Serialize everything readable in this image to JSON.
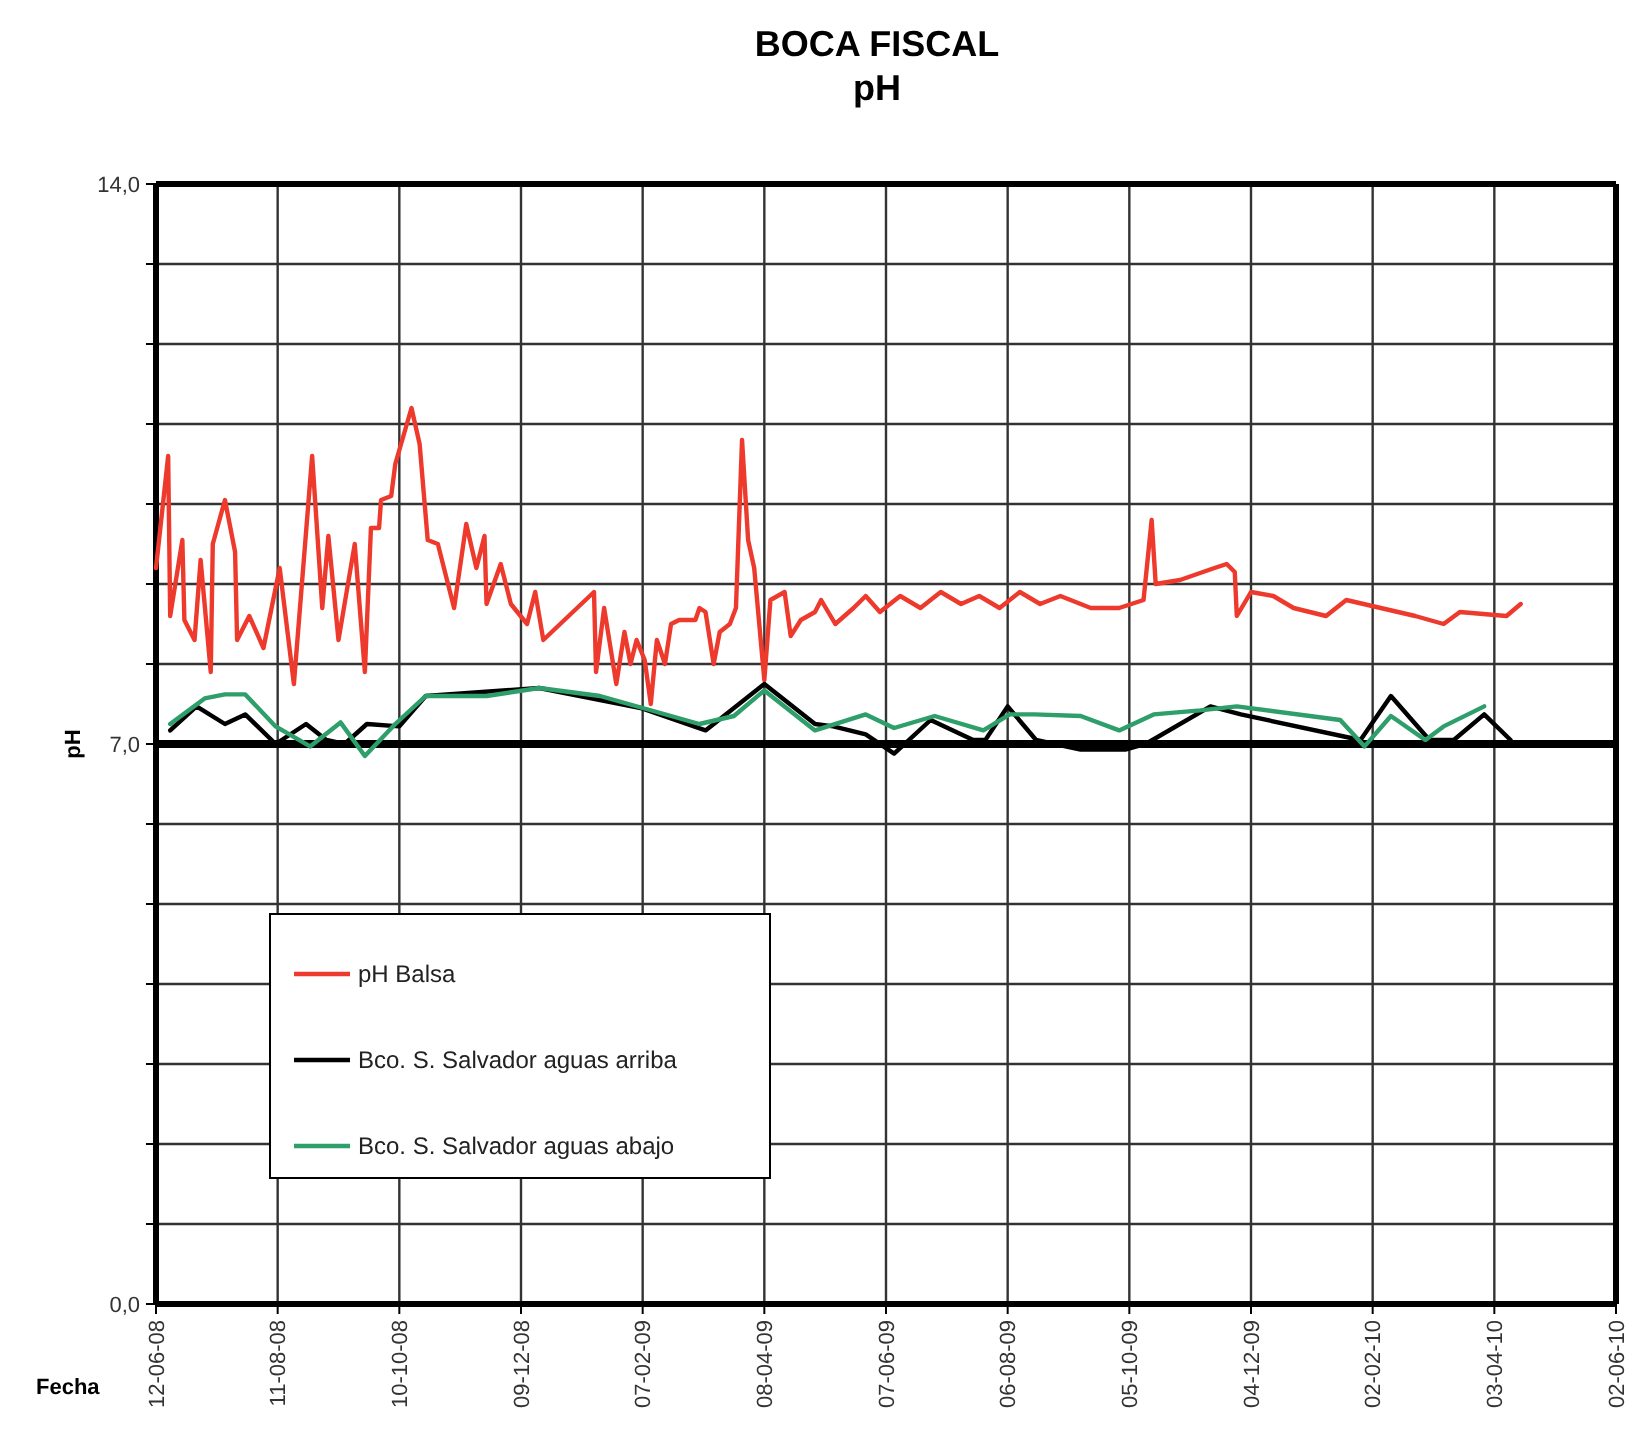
{
  "chart_data": {
    "type": "line",
    "title": "BOCA FISCAL",
    "subtitle": "pH",
    "xlabel": "Fecha",
    "ylabel": "pH",
    "xlim": [
      "2008-06-12",
      "2010-06-02"
    ],
    "xticks": [
      {
        "value": "2008-06-12",
        "label": "12-06-08"
      },
      {
        "value": "2008-08-11",
        "label": "11-08-08"
      },
      {
        "value": "2008-10-10",
        "label": "10-10-08"
      },
      {
        "value": "2008-12-09",
        "label": "09-12-08"
      },
      {
        "value": "2009-02-07",
        "label": "07-02-09"
      },
      {
        "value": "2009-04-08",
        "label": "08-04-09"
      },
      {
        "value": "2009-06-07",
        "label": "07-06-09"
      },
      {
        "value": "2009-08-06",
        "label": "06-08-09"
      },
      {
        "value": "2009-10-05",
        "label": "05-10-09"
      },
      {
        "value": "2009-12-04",
        "label": "04-12-09"
      },
      {
        "value": "2010-02-02",
        "label": "02-02-10"
      },
      {
        "value": "2010-04-03",
        "label": "03-04-10"
      },
      {
        "value": "2010-06-02",
        "label": "02-06-10"
      }
    ],
    "ylim": [
      0,
      14
    ],
    "yticks": [
      {
        "value": 0,
        "label": "0,0"
      },
      {
        "value": 1,
        "label": null
      },
      {
        "value": 2,
        "label": null
      },
      {
        "value": 3,
        "label": null
      },
      {
        "value": 4,
        "label": null
      },
      {
        "value": 5,
        "label": null
      },
      {
        "value": 6,
        "label": null
      },
      {
        "value": 7,
        "label": "7,0"
      },
      {
        "value": 8,
        "label": null
      },
      {
        "value": 9,
        "label": null
      },
      {
        "value": 10,
        "label": null
      },
      {
        "value": 11,
        "label": null
      },
      {
        "value": 12,
        "label": null
      },
      {
        "value": 13,
        "label": null
      },
      {
        "value": 14,
        "label": "14,0"
      }
    ],
    "grid": true,
    "legend": "bottom left",
    "marker": "none",
    "line_style": "solid",
    "ref_lines": [
      {
        "axis": "y",
        "value": 7,
        "color": "#000000"
      }
    ],
    "series": [
      {
        "name": "pH Balsa",
        "color": "#ee3a2c",
        "x": [
          "2008-06-12",
          "2008-06-18",
          "2008-06-19",
          "2008-06-25",
          "2008-06-26",
          "2008-07-01",
          "2008-07-04",
          "2008-07-09",
          "2008-07-10",
          "2008-07-16",
          "2008-07-21",
          "2008-07-22",
          "2008-07-28",
          "2008-08-04",
          "2008-08-12",
          "2008-08-19",
          "2008-08-28",
          "2008-09-02",
          "2008-09-05",
          "2008-09-10",
          "2008-09-18",
          "2008-09-23",
          "2008-09-26",
          "2008-09-30",
          "2008-10-01",
          "2008-10-06",
          "2008-10-08",
          "2008-10-16",
          "2008-10-20",
          "2008-10-24",
          "2008-10-29",
          "2008-11-06",
          "2008-11-12",
          "2008-11-17",
          "2008-11-21",
          "2008-11-22",
          "2008-11-29",
          "2008-12-04",
          "2008-12-12",
          "2008-12-16",
          "2008-12-20",
          "2009-01-14",
          "2009-01-15",
          "2009-01-19",
          "2009-01-25",
          "2009-01-29",
          "2009-02-01",
          "2009-02-04",
          "2009-02-08",
          "2009-02-11",
          "2009-02-14",
          "2009-02-18",
          "2009-02-21",
          "2009-02-25",
          "2009-03-05",
          "2009-03-07",
          "2009-03-10",
          "2009-03-14",
          "2009-03-17",
          "2009-03-22",
          "2009-03-25",
          "2009-03-28",
          "2009-03-31",
          "2009-04-03",
          "2009-04-08",
          "2009-04-11",
          "2009-04-18",
          "2009-04-21",
          "2009-04-26",
          "2009-05-03",
          "2009-05-06",
          "2009-05-13",
          "2009-05-22",
          "2009-05-28",
          "2009-06-04",
          "2009-06-14",
          "2009-06-24",
          "2009-07-04",
          "2009-07-14",
          "2009-07-23",
          "2009-08-02",
          "2009-08-12",
          "2009-08-22",
          "2009-09-01",
          "2009-09-16",
          "2009-09-30",
          "2009-10-12",
          "2009-10-16",
          "2009-10-18",
          "2009-10-30",
          "2009-11-16",
          "2009-11-22",
          "2009-11-26",
          "2009-11-27",
          "2009-12-04",
          "2009-12-15",
          "2009-12-25",
          "2010-01-10",
          "2010-01-20",
          "2010-02-06",
          "2010-02-23",
          "2010-03-09",
          "2010-03-17",
          "2010-04-09",
          "2010-04-16"
        ],
        "values": [
          9.2,
          10.6,
          8.6,
          9.55,
          8.55,
          8.3,
          9.3,
          7.9,
          9.5,
          10.05,
          9.4,
          8.3,
          8.6,
          8.2,
          9.2,
          7.75,
          10.6,
          8.7,
          9.6,
          8.3,
          9.5,
          7.9,
          9.7,
          9.7,
          10.05,
          10.1,
          10.5,
          11.2,
          10.75,
          9.55,
          9.5,
          8.7,
          9.75,
          9.2,
          9.6,
          8.75,
          9.25,
          8.75,
          8.5,
          8.9,
          8.3,
          8.9,
          7.9,
          8.7,
          7.75,
          8.4,
          8.0,
          8.3,
          8.05,
          7.5,
          8.3,
          8.0,
          8.5,
          8.55,
          8.55,
          8.7,
          8.65,
          8.0,
          8.4,
          8.5,
          8.7,
          10.8,
          9.55,
          9.2,
          7.8,
          8.8,
          8.9,
          8.35,
          8.55,
          8.65,
          8.8,
          8.5,
          8.7,
          8.85,
          8.65,
          8.85,
          8.7,
          8.9,
          8.75,
          8.85,
          8.7,
          8.9,
          8.75,
          8.85,
          8.7,
          8.7,
          8.8,
          9.8,
          9.0,
          9.05,
          9.2,
          9.25,
          9.15,
          8.6,
          8.9,
          8.85,
          8.7,
          8.6,
          8.8,
          8.7,
          8.6,
          8.5,
          8.65,
          8.6,
          8.75
        ]
      },
      {
        "name": "Bco. S. Salvador aguas arriba",
        "color": "#000000",
        "x": [
          "2008-06-19",
          "2008-07-02",
          "2008-07-16",
          "2008-07-26",
          "2008-08-10",
          "2008-08-25",
          "2008-09-04",
          "2008-09-13",
          "2008-09-24",
          "2008-10-10",
          "2008-10-23",
          "2008-12-18",
          "2009-02-06",
          "2009-03-10",
          "2009-04-08",
          "2009-05-03",
          "2009-05-12",
          "2009-05-28",
          "2009-06-11",
          "2009-06-29",
          "2009-07-20",
          "2009-07-26",
          "2009-08-06",
          "2009-08-20",
          "2009-09-11",
          "2009-10-03",
          "2009-10-13",
          "2009-11-14",
          "2009-11-29",
          "2010-01-27",
          "2010-02-11",
          "2010-03-02",
          "2010-03-14",
          "2010-03-29",
          "2010-04-11"
        ],
        "values": [
          7.17,
          7.47,
          7.25,
          7.37,
          7.0,
          7.25,
          7.05,
          7.0,
          7.25,
          7.22,
          7.6,
          7.7,
          7.45,
          7.17,
          7.75,
          7.25,
          7.22,
          7.12,
          6.88,
          7.3,
          7.05,
          7.05,
          7.47,
          7.05,
          6.93,
          6.93,
          7.0,
          7.47,
          7.37,
          7.05,
          7.6,
          7.05,
          7.05,
          7.37,
          7.05
        ]
      },
      {
        "name": "Bco. S. Salvador aguas abajo",
        "color": "#2e9e6a",
        "x": [
          "2008-06-19",
          "2008-07-06",
          "2008-07-16",
          "2008-07-26",
          "2008-08-10",
          "2008-08-27",
          "2008-09-11",
          "2008-09-23",
          "2008-10-08",
          "2008-10-23",
          "2008-11-22",
          "2008-12-18",
          "2009-01-17",
          "2009-03-07",
          "2009-03-24",
          "2009-04-08",
          "2009-05-03",
          "2009-05-28",
          "2009-06-11",
          "2009-07-01",
          "2009-07-25",
          "2009-08-07",
          "2009-08-19",
          "2009-09-11",
          "2009-09-30",
          "2009-10-17",
          "2009-11-09",
          "2009-11-27",
          "2010-01-17",
          "2010-01-29",
          "2010-02-11",
          "2010-02-28",
          "2010-03-09",
          "2010-03-29"
        ],
        "values": [
          7.25,
          7.57,
          7.62,
          7.62,
          7.22,
          6.97,
          7.27,
          6.85,
          7.25,
          7.6,
          7.6,
          7.7,
          7.6,
          7.25,
          7.35,
          7.67,
          7.17,
          7.37,
          7.2,
          7.35,
          7.17,
          7.37,
          7.37,
          7.35,
          7.17,
          7.37,
          7.42,
          7.47,
          7.3,
          6.97,
          7.35,
          7.05,
          7.22,
          7.47
        ]
      }
    ]
  }
}
